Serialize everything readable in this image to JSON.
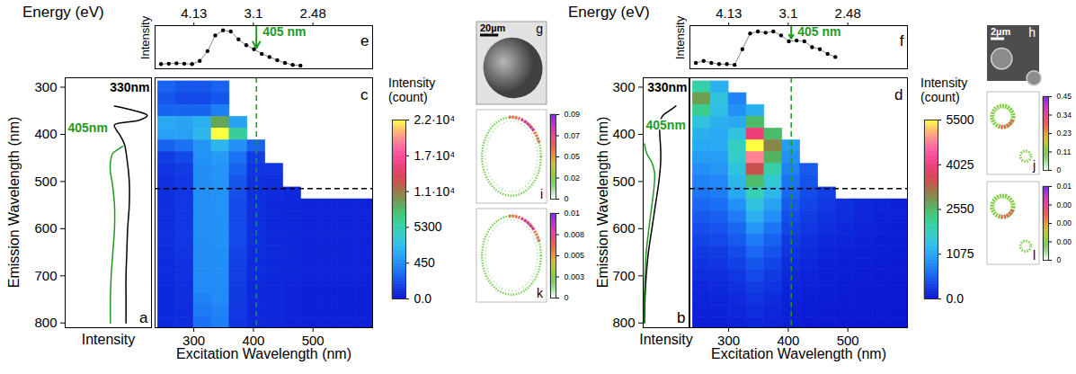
{
  "chart_data": [
    {
      "panel": "a",
      "type": "line",
      "xlabel": "Intensity",
      "ylabel": "Emission Wavelength (nm)",
      "xlim": [
        0,
        1.05
      ],
      "ylim": [
        810,
        280
      ],
      "yticks": [
        300,
        400,
        500,
        600,
        700,
        800
      ],
      "tick_labels": "y",
      "series": [
        {
          "name": "330nm",
          "color": "#000000",
          "y": [
            340,
            350,
            360,
            370,
            380,
            390,
            400,
            420,
            450,
            500,
            550,
            600,
            650,
            700,
            750,
            800
          ],
          "x": [
            0.6,
            0.85,
            1.0,
            0.9,
            0.6,
            0.62,
            0.66,
            0.72,
            0.75,
            0.78,
            0.78,
            0.76,
            0.75,
            0.74,
            0.74,
            0.74
          ]
        },
        {
          "name": "405nm",
          "color": "#1f9a1f",
          "y": [
            425,
            430,
            440,
            460,
            480,
            500,
            550,
            600,
            650,
            700,
            750,
            800
          ],
          "x": [
            0.7,
            0.66,
            0.58,
            0.55,
            0.55,
            0.57,
            0.6,
            0.6,
            0.58,
            0.56,
            0.55,
            0.55
          ]
        }
      ]
    },
    {
      "panel": "c",
      "type": "heatmap",
      "xlabel": "Excitation Wavelength (nm)",
      "x": [
        255,
        285,
        315,
        345,
        375,
        405,
        435,
        465,
        495,
        525,
        555,
        585
      ],
      "y": [
        300,
        325,
        350,
        375,
        400,
        425,
        450,
        475,
        500,
        525,
        550,
        575,
        600,
        625,
        650,
        675,
        700,
        725,
        750,
        775,
        800
      ],
      "cells": [
        [
          300,
          250,
          250,
          300,
          null,
          null,
          null,
          null,
          null,
          null,
          null,
          null
        ],
        [
          250,
          200,
          200,
          250,
          null,
          null,
          null,
          null,
          null,
          null,
          null,
          null
        ],
        [
          300,
          300,
          300,
          400,
          null,
          null,
          null,
          null,
          null,
          null,
          null,
          null
        ],
        [
          1800,
          1600,
          2200,
          9000,
          1500,
          null,
          null,
          null,
          null,
          null,
          null,
          null
        ],
        [
          1500,
          1400,
          2600,
          22000,
          6000,
          null,
          null,
          null,
          null,
          null,
          null,
          null
        ],
        [
          300,
          350,
          900,
          2500,
          700,
          300,
          null,
          null,
          null,
          null,
          null,
          null
        ],
        [
          150,
          200,
          700,
          1100,
          350,
          150,
          null,
          null,
          null,
          null,
          null,
          null
        ],
        [
          120,
          150,
          650,
          900,
          300,
          120,
          120,
          null,
          null,
          null,
          null,
          null
        ],
        [
          110,
          140,
          650,
          850,
          250,
          110,
          100,
          null,
          null,
          null,
          null,
          null
        ],
        [
          100,
          130,
          650,
          800,
          220,
          100,
          90,
          80,
          null,
          null,
          null,
          null
        ],
        [
          100,
          130,
          700,
          800,
          200,
          100,
          80,
          70,
          60,
          60,
          60,
          60
        ],
        [
          100,
          130,
          700,
          780,
          200,
          100,
          80,
          70,
          60,
          60,
          60,
          60
        ],
        [
          100,
          130,
          700,
          750,
          200,
          100,
          80,
          70,
          60,
          60,
          60,
          60
        ],
        [
          100,
          130,
          650,
          700,
          200,
          100,
          80,
          70,
          60,
          60,
          60,
          60
        ],
        [
          100,
          120,
          600,
          650,
          180,
          90,
          80,
          70,
          60,
          60,
          60,
          60
        ],
        [
          90,
          110,
          550,
          600,
          170,
          90,
          80,
          70,
          60,
          60,
          60,
          60
        ],
        [
          90,
          110,
          500,
          550,
          160,
          90,
          80,
          70,
          60,
          60,
          60,
          60
        ],
        [
          80,
          100,
          450,
          500,
          150,
          80,
          70,
          60,
          50,
          50,
          50,
          50
        ],
        [
          80,
          100,
          420,
          450,
          140,
          80,
          70,
          60,
          50,
          50,
          50,
          50
        ],
        [
          80,
          90,
          380,
          420,
          130,
          80,
          70,
          60,
          50,
          50,
          50,
          50
        ],
        [
          80,
          90,
          350,
          400,
          120,
          80,
          70,
          60,
          50,
          50,
          50,
          50
        ]
      ],
      "xlim": [
        235,
        600
      ],
      "xticks": [
        300,
        400,
        500
      ],
      "ylim": [
        810,
        280
      ],
      "tick_labels": "x",
      "colorbar": {
        "title": "Intensity (count)",
        "lim": [
          0,
          22000
        ],
        "ticks": [
          {
            "value": 0,
            "label": "0.0"
          },
          450,
          5300,
          {
            "value": 11000,
            "label": "1.1·10⁴"
          },
          {
            "value": 17000,
            "label": "1.7·10⁴"
          },
          {
            "value": 22000,
            "label": "2.2·10⁴"
          }
        ]
      },
      "reference_lines": [
        {
          "axis": "x",
          "value": 405,
          "color": "#1f9a1f",
          "line_style": "dashed"
        },
        {
          "axis": "y",
          "value": 515,
          "color": "#000000",
          "line_style": "dashed"
        }
      ]
    },
    {
      "panel": "e",
      "type": "line",
      "marker": "circle",
      "color": "#000000",
      "ylabel": "Intensity",
      "x2label": "Energy (eV)",
      "x": [
        245,
        258,
        271,
        284,
        297,
        310,
        323,
        336,
        349,
        362,
        375,
        388,
        401,
        414,
        427,
        440,
        453,
        466,
        479
      ],
      "values": [
        0.12,
        0.13,
        0.14,
        0.13,
        0.12,
        0.2,
        0.45,
        0.85,
        0.98,
        0.95,
        0.75,
        0.6,
        0.5,
        0.38,
        0.3,
        0.22,
        0.15,
        0.1,
        0.08
      ],
      "xlim": [
        235,
        600
      ],
      "ylim": [
        0,
        1.1
      ],
      "x2ticks": [
        4.13,
        3.1,
        2.48
      ],
      "tick_labels": "x",
      "annotation": {
        "text": "405 nm",
        "x": 405,
        "color": "#1f9a1f"
      }
    },
    {
      "panel": "g",
      "type": "image",
      "scale_bar": "20µm"
    },
    {
      "panel": "i",
      "type": "image",
      "colorbar": {
        "lim": [
          0,
          0.09
        ],
        "ticks": [
          0.09,
          0.07,
          0.05,
          0.02,
          0
        ]
      }
    },
    {
      "panel": "k",
      "type": "image",
      "colorbar": {
        "lim": [
          0,
          0.01
        ],
        "ticks": [
          0.01,
          0.008,
          0.005,
          0.003,
          0
        ]
      }
    },
    {
      "panel": "b",
      "type": "line",
      "xlabel": "Intensity",
      "ylabel": "Emission Wavelength (nm)",
      "xlim": [
        0,
        1.05
      ],
      "ylim": [
        810,
        280
      ],
      "yticks": [
        300,
        400,
        500,
        600,
        700,
        800
      ],
      "tick_labels": "y",
      "series": [
        {
          "name": "330nm",
          "color": "#000000",
          "y": [
            340,
            350,
            360,
            370,
            380,
            400,
            430,
            460,
            500,
            550,
            600,
            650,
            700,
            750,
            800
          ],
          "x": [
            0.75,
            0.6,
            0.45,
            0.4,
            0.38,
            0.38,
            0.4,
            0.4,
            0.36,
            0.28,
            0.2,
            0.12,
            0.07,
            0.04,
            0.03
          ]
        },
        {
          "name": "405nm",
          "color": "#1f9a1f",
          "y": [
            420,
            440,
            460,
            480,
            500,
            520,
            550,
            600,
            650,
            700,
            750,
            800
          ],
          "x": [
            0.03,
            0.08,
            0.2,
            0.26,
            0.26,
            0.24,
            0.2,
            0.13,
            0.07,
            0.04,
            0.02,
            0.01
          ]
        }
      ]
    },
    {
      "panel": "d",
      "type": "heatmap",
      "xlabel": "Excitation Wavelength (nm)",
      "x": [
        255,
        285,
        315,
        345,
        375,
        405,
        435,
        465,
        495,
        525,
        555,
        585
      ],
      "y": [
        300,
        325,
        350,
        375,
        400,
        425,
        450,
        475,
        500,
        525,
        550,
        575,
        600,
        625,
        650,
        675,
        700,
        725,
        750,
        775,
        800
      ],
      "cells": [
        [
          2000,
          1200,
          null,
          null,
          null,
          null,
          null,
          null,
          null,
          null,
          null,
          null
        ],
        [
          2800,
          1500,
          800,
          null,
          null,
          null,
          null,
          null,
          null,
          null,
          null,
          null
        ],
        [
          2200,
          1400,
          900,
          1200,
          null,
          null,
          null,
          null,
          null,
          null,
          null,
          null
        ],
        [
          1500,
          1200,
          1100,
          2500,
          null,
          null,
          null,
          null,
          null,
          null,
          null,
          null
        ],
        [
          1200,
          1100,
          1500,
          4000,
          2500,
          null,
          null,
          null,
          null,
          null,
          null,
          null
        ],
        [
          1100,
          1100,
          1800,
          5500,
          3000,
          1000,
          null,
          null,
          null,
          null,
          null,
          null
        ],
        [
          1000,
          1000,
          1700,
          4800,
          2600,
          900,
          null,
          null,
          null,
          null,
          null,
          null
        ],
        [
          900,
          950,
          1500,
          3500,
          2000,
          800,
          500,
          null,
          null,
          null,
          null,
          null
        ],
        [
          800,
          850,
          1300,
          2500,
          1600,
          700,
          450,
          null,
          null,
          null,
          null,
          null
        ],
        [
          700,
          750,
          1100,
          1900,
          1300,
          600,
          400,
          300,
          null,
          null,
          null,
          null
        ],
        [
          600,
          650,
          900,
          1500,
          1050,
          500,
          350,
          250,
          200,
          150,
          120,
          100
        ],
        [
          500,
          550,
          750,
          1200,
          900,
          420,
          300,
          220,
          180,
          130,
          100,
          90
        ],
        [
          420,
          450,
          600,
          950,
          700,
          350,
          250,
          180,
          150,
          110,
          90,
          80
        ],
        [
          350,
          380,
          500,
          750,
          560,
          280,
          200,
          150,
          120,
          90,
          80,
          70
        ],
        [
          280,
          300,
          400,
          600,
          450,
          230,
          170,
          120,
          100,
          80,
          70,
          60
        ],
        [
          220,
          240,
          320,
          480,
          350,
          180,
          140,
          100,
          80,
          70,
          60,
          50
        ],
        [
          180,
          190,
          250,
          380,
          280,
          150,
          110,
          80,
          70,
          60,
          50,
          40
        ],
        [
          140,
          150,
          200,
          300,
          220,
          120,
          90,
          70,
          60,
          50,
          40,
          30
        ],
        [
          110,
          120,
          160,
          230,
          170,
          100,
          70,
          60,
          50,
          40,
          30,
          30
        ],
        [
          90,
          100,
          130,
          180,
          140,
          80,
          60,
          50,
          40,
          30,
          30,
          20
        ],
        [
          70,
          80,
          100,
          140,
          110,
          70,
          50,
          40,
          30,
          30,
          20,
          20
        ]
      ],
      "xlim": [
        235,
        600
      ],
      "xticks": [
        300,
        400,
        500
      ],
      "ylim": [
        810,
        280
      ],
      "tick_labels": "x",
      "colorbar": {
        "title": "Intensity (count)",
        "lim": [
          0,
          5500
        ],
        "ticks": [
          {
            "value": 0,
            "label": "0.0"
          },
          1075,
          2550,
          4025,
          5500
        ]
      },
      "reference_lines": [
        {
          "axis": "x",
          "value": 405,
          "color": "#1f9a1f",
          "line_style": "dashed"
        },
        {
          "axis": "y",
          "value": 515,
          "color": "#000000",
          "line_style": "dashed"
        }
      ]
    },
    {
      "panel": "f",
      "type": "line",
      "marker": "circle",
      "color": "#000000",
      "ylabel": "Intensity",
      "x2label": "Energy (eV)",
      "x": [
        245,
        258,
        271,
        284,
        297,
        310,
        323,
        336,
        349,
        362,
        375,
        388,
        401,
        414,
        427,
        440,
        453,
        466,
        479
      ],
      "values": [
        0.15,
        0.2,
        0.15,
        0.12,
        0.12,
        0.1,
        0.5,
        0.9,
        0.95,
        0.92,
        0.95,
        0.85,
        0.7,
        0.72,
        0.7,
        0.55,
        0.5,
        0.38,
        0.3
      ],
      "xlim": [
        235,
        600
      ],
      "ylim": [
        0,
        1.1
      ],
      "x2ticks": [
        4.13,
        3.1,
        2.48
      ],
      "tick_labels": "x",
      "annotation": {
        "text": "405 nm",
        "x": 405,
        "color": "#1f9a1f"
      }
    },
    {
      "panel": "h",
      "type": "image",
      "scale_bar": "2µm"
    },
    {
      "panel": "j",
      "type": "image",
      "colorbar": {
        "lim": [
          0,
          0.45
        ],
        "ticks": [
          0.45,
          0.34,
          0.23,
          0.11,
          0
        ]
      }
    },
    {
      "panel": "l",
      "type": "image",
      "colorbar": {
        "lim": [
          0,
          0.006
        ],
        "ticks": [
          {
            "value": 0.006,
            "label": "0.01"
          },
          {
            "value": 0.0045,
            "label": "0.00"
          },
          {
            "value": 0.003,
            "label": "0.00"
          },
          {
            "value": 0.0015,
            "label": "0.00"
          },
          0
        ]
      }
    }
  ]
}
